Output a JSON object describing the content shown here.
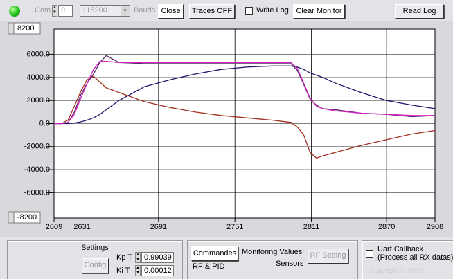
{
  "toolbar": {
    "com_label": "Com",
    "com_port": "9",
    "baud_rate": "115200",
    "bauds_label": "Bauds",
    "close_button": "Close",
    "traces_button": "Traces OFF",
    "write_log_label": "Write Log",
    "clear_monitor_button": "Clear Monitor",
    "read_log_button": "Read Log"
  },
  "chart_data": {
    "type": "line",
    "x": [
      2609,
      2615,
      2620,
      2625,
      2630,
      2635,
      2640,
      2645,
      2650,
      2660,
      2680,
      2700,
      2720,
      2740,
      2760,
      2780,
      2795,
      2800,
      2805,
      2810,
      2815,
      2820,
      2830,
      2850,
      2870,
      2890,
      2908
    ],
    "series": [
      {
        "color": "#1a1a6e",
        "values": [
          0,
          0,
          0,
          50,
          150,
          300,
          500,
          800,
          1200,
          2000,
          3200,
          3800,
          4300,
          4700,
          4900,
          5000,
          5000,
          4900,
          4700,
          4400,
          4200,
          4000,
          3500,
          2700,
          2000,
          1600,
          1300
        ]
      },
      {
        "color": "#a03020",
        "values": [
          0,
          0,
          300,
          1500,
          2800,
          3800,
          4100,
          3600,
          3100,
          2700,
          1900,
          1400,
          1000,
          700,
          500,
          300,
          100,
          -300,
          -1000,
          -2500,
          -3000,
          -2800,
          -2500,
          -1900,
          -1400,
          -900,
          -600
        ]
      },
      {
        "color": "#5a2a6a",
        "values": [
          0,
          0,
          100,
          1000,
          2500,
          3500,
          4300,
          5300,
          5900,
          5300,
          5200,
          5200,
          5200,
          5200,
          5200,
          5200,
          5200,
          4600,
          3400,
          2100,
          1600,
          1300,
          1200,
          900,
          800,
          600,
          700
        ]
      },
      {
        "color": "#d020c0",
        "values": [
          0,
          0,
          100,
          800,
          2200,
          3500,
          4700,
          5400,
          5400,
          5300,
          5300,
          5300,
          5300,
          5300,
          5300,
          5300,
          5300,
          4800,
          3500,
          2200,
          1500,
          1300,
          1100,
          900,
          800,
          700,
          700
        ]
      }
    ],
    "xlim": [
      2609,
      2908
    ],
    "xticks": [
      2609,
      2631,
      2691,
      2751,
      2811,
      2870,
      2908
    ],
    "ylim": [
      -8200,
      8200
    ],
    "yticks": [
      {
        "value": 6000,
        "label": "6000.0"
      },
      {
        "value": 4000,
        "label": "4000.0"
      },
      {
        "value": 2000,
        "label": "2000.0"
      },
      {
        "value": 0,
        "label": "0.0"
      },
      {
        "value": -2000,
        "label": "-2000.0"
      },
      {
        "value": -4000,
        "label": "-4000.0"
      },
      {
        "value": -6000,
        "label": "-6000.0"
      }
    ],
    "grid": true
  },
  "bottom_panel": {
    "settings_label": "Settings",
    "config_button": "Config",
    "kp_label": "Kp T",
    "kp_value": "0.99039",
    "ki_label": "Ki T",
    "ki_value": "0.00012",
    "commandes_button": "Commandes",
    "rf_pid_label": "RF & PID",
    "monitoring_label": "Monitoring Values",
    "sensors_label": "Sensors",
    "rf_setting_button": "RF Setting",
    "uart_label": "Uart Callback",
    "uart_note": "(Process all RX datas)",
    "watermark": "copyright © 2010"
  }
}
